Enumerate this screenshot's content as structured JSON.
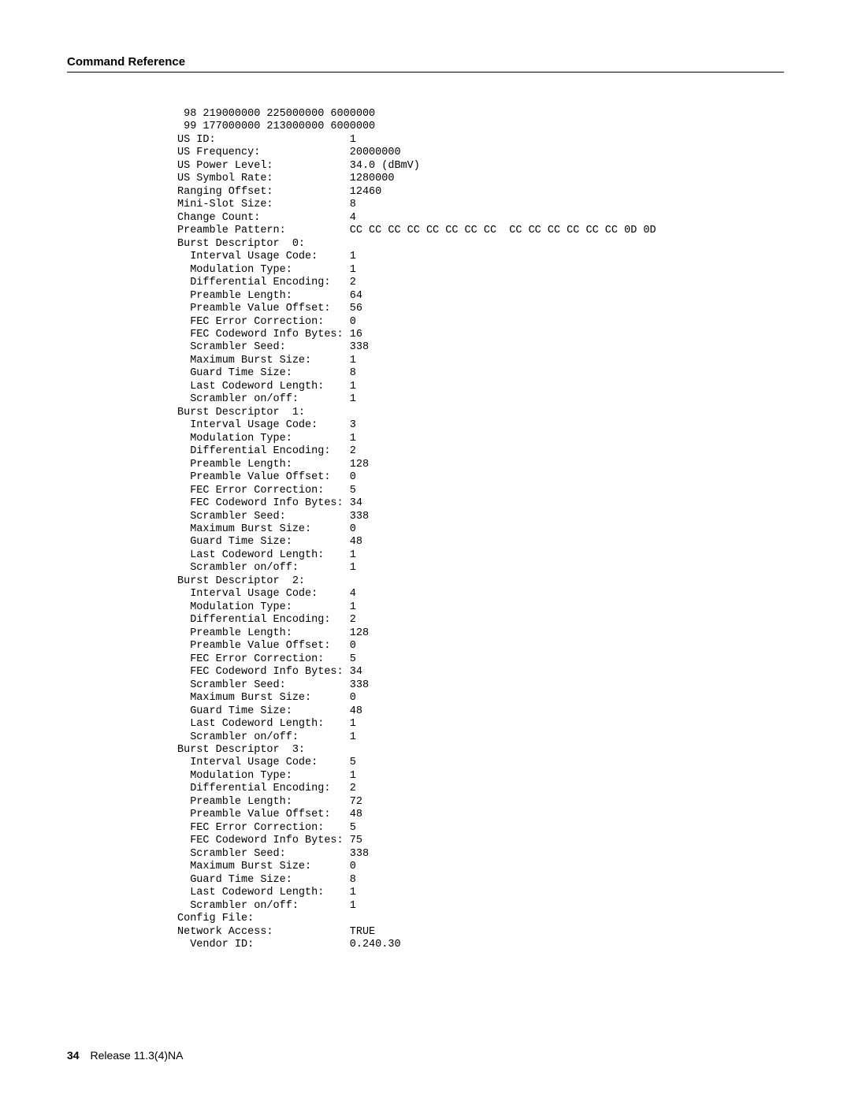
{
  "header": {
    "title": "Command Reference"
  },
  "footer": {
    "page_number": "34",
    "release": "Release 11.3(4)NA"
  },
  "terminal": {
    "lines": [
      " 98 219000000 225000000 6000000",
      " 99 177000000 213000000 6000000",
      "US ID:                     1",
      "US Frequency:              20000000",
      "US Power Level:            34.0 (dBmV)",
      "US Symbol Rate:            1280000",
      "Ranging Offset:            12460",
      "Mini-Slot Size:            8",
      "Change Count:              4",
      "Preamble Pattern:          CC CC CC CC CC CC CC CC  CC CC CC CC CC CC 0D 0D",
      "Burst Descriptor  0:",
      "  Interval Usage Code:     1",
      "  Modulation Type:         1",
      "  Differential Encoding:   2",
      "  Preamble Length:         64",
      "  Preamble Value Offset:   56",
      "  FEC Error Correction:    0",
      "  FEC Codeword Info Bytes: 16",
      "  Scrambler Seed:          338",
      "  Maximum Burst Size:      1",
      "  Guard Time Size:         8",
      "  Last Codeword Length:    1",
      "  Scrambler on/off:        1",
      "Burst Descriptor  1:",
      "  Interval Usage Code:     3",
      "  Modulation Type:         1",
      "  Differential Encoding:   2",
      "  Preamble Length:         128",
      "  Preamble Value Offset:   0",
      "  FEC Error Correction:    5",
      "  FEC Codeword Info Bytes: 34",
      "  Scrambler Seed:          338",
      "  Maximum Burst Size:      0",
      "  Guard Time Size:         48",
      "  Last Codeword Length:    1",
      "  Scrambler on/off:        1",
      "Burst Descriptor  2:",
      "  Interval Usage Code:     4",
      "  Modulation Type:         1",
      "  Differential Encoding:   2",
      "  Preamble Length:         128",
      "  Preamble Value Offset:   0",
      "  FEC Error Correction:    5",
      "  FEC Codeword Info Bytes: 34",
      "  Scrambler Seed:          338",
      "  Maximum Burst Size:      0",
      "  Guard Time Size:         48",
      "  Last Codeword Length:    1",
      "  Scrambler on/off:        1",
      "Burst Descriptor  3:",
      "  Interval Usage Code:     5",
      "  Modulation Type:         1",
      "  Differential Encoding:   2",
      "  Preamble Length:         72",
      "  Preamble Value Offset:   48",
      "  FEC Error Correction:    5",
      "  FEC Codeword Info Bytes: 75",
      "  Scrambler Seed:          338",
      "  Maximum Burst Size:      0",
      "  Guard Time Size:         8",
      "  Last Codeword Length:    1",
      "  Scrambler on/off:        1",
      "Config File:",
      "Network Access:            TRUE",
      "  Vendor ID:               0.240.30"
    ]
  }
}
